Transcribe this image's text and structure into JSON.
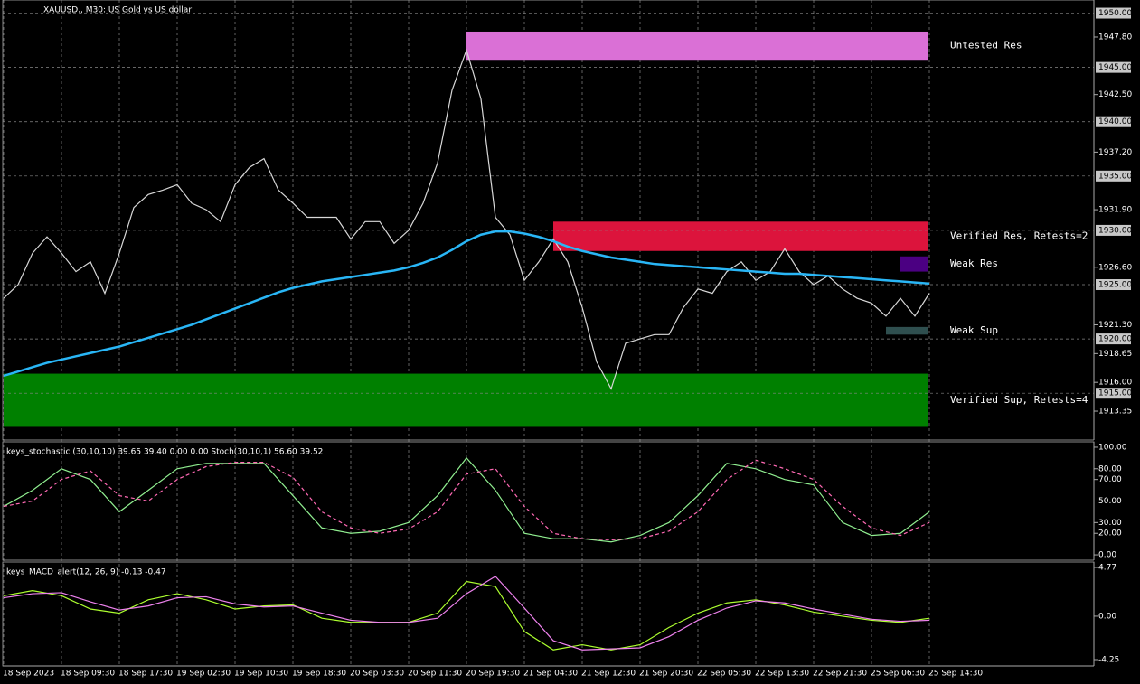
{
  "chart_data": [
    {
      "type": "line",
      "title": "XAUUSD., M30: US Gold vs US dollar",
      "categories": [
        "18 Sep 2023",
        null,
        null,
        null,
        "18 Sep 09:30",
        null,
        null,
        null,
        "18 Sep 17:30",
        null,
        null,
        null,
        "19 Sep 02:30",
        null,
        null,
        null,
        "19 Sep 10:30",
        null,
        null,
        null,
        "19 Sep 18:30",
        null,
        null,
        null,
        "20 Sep 03:30",
        null,
        null,
        null,
        "20 Sep 11:30",
        null,
        null,
        null,
        "20 Sep 19:30",
        null,
        null,
        null,
        "21 Sep 04:30",
        null,
        null,
        null,
        "21 Sep 12:30",
        null,
        null,
        null,
        "21 Sep 20:30",
        null,
        null,
        null,
        "22 Sep 05:30",
        null,
        null,
        null,
        "22 Sep 13:30",
        null,
        null,
        null,
        "22 Sep 21:30",
        null,
        null,
        null,
        "25 Sep 06:30",
        null,
        null,
        null,
        "25 Sep 14:30"
      ],
      "series": [
        {
          "color": "#d8d8d8",
          "values": [
            1923.75,
            1925.0,
            1927.9,
            1929.4,
            1927.9,
            1926.2,
            1927.1,
            1924.2,
            1927.9,
            1932.1,
            1933.3,
            1933.7,
            1934.2,
            1932.5,
            1931.9,
            1930.8,
            1934.2,
            1935.8,
            1936.6,
            1933.7,
            1932.5,
            1931.2,
            1931.2,
            1931.2,
            1929.2,
            1930.8,
            1930.8,
            1928.8,
            1930.0,
            1932.5,
            1936.2,
            1942.9,
            1946.6,
            1942.1,
            1931.2,
            1929.6,
            1925.4,
            1927.1,
            1929.2,
            1927.1,
            1922.9,
            1917.9,
            1915.4,
            1919.6,
            1920.0,
            1920.4,
            1920.4,
            1922.9,
            1924.6,
            1924.2,
            1926.2,
            1927.1,
            1925.4,
            1926.2,
            1928.3,
            1926.2,
            1925.0,
            1925.8,
            1924.6,
            1923.75,
            1923.3,
            1922.1,
            1923.75,
            1922.1,
            1924.2
          ]
        },
        {
          "color": "#29b6f6",
          "values": [
            1916.6,
            1917.0,
            1917.4,
            1917.8,
            1918.1,
            1918.4,
            1918.7,
            1919.0,
            1919.3,
            1919.7,
            1920.1,
            1920.5,
            1920.9,
            1921.3,
            1921.8,
            1922.3,
            1922.8,
            1923.3,
            1923.8,
            1924.3,
            1924.7,
            1925.0,
            1925.3,
            1925.5,
            1925.7,
            1925.9,
            1926.1,
            1926.3,
            1926.6,
            1927.0,
            1927.5,
            1928.2,
            1929.0,
            1929.6,
            1929.9,
            1929.9,
            1929.7,
            1929.4,
            1929.0,
            1928.5,
            1928.1,
            1927.8,
            1927.5,
            1927.3,
            1927.1,
            1926.9,
            1926.8,
            1926.7,
            1926.6,
            1926.5,
            1926.4,
            1926.3,
            1926.2,
            1926.1,
            1926.0,
            1926.0,
            1925.9,
            1925.8,
            1925.7,
            1925.6,
            1925.5,
            1925.4,
            1925.3,
            1925.2,
            1925.1
          ]
        }
      ],
      "ylim": [
        1910.69,
        1951.21
      ],
      "yticks": [
        1913.35,
        {
          "value": 1916.0,
          "label": "1916.00"
        },
        1918.65,
        {
          "value": 1921.3,
          "label": "1921.30"
        },
        {
          "value": 1926.6,
          "label": "1926.60"
        },
        {
          "value": 1931.9,
          "label": "1931.90"
        },
        {
          "value": 1937.2,
          "label": "1937.20"
        },
        {
          "value": 1942.5,
          "label": "1942.50"
        },
        {
          "value": 1947.8,
          "label": "1947.80"
        }
      ],
      "levels": [
        {
          "value": 1915,
          "label": "1915.00"
        },
        {
          "value": 1920,
          "label": "1920.00"
        },
        {
          "value": 1925,
          "label": "1925.00"
        },
        {
          "value": 1930,
          "label": "1930.00"
        },
        {
          "value": 1935,
          "label": "1935.00"
        },
        {
          "value": 1940,
          "label": "1940.00"
        },
        {
          "value": 1945,
          "label": "1945.00"
        },
        {
          "value": 1950,
          "label": "1950.00"
        }
      ],
      "zones": [
        {
          "label": "Untested Res",
          "color": "#da70d6",
          "start": 32,
          "high": 1948.3,
          "low": 1945.7
        },
        {
          "label": "Verified Res, Retests=2",
          "color": "#dc143c",
          "start": 38,
          "high": 1930.8,
          "low": 1928.1
        },
        {
          "label": "Weak Res",
          "color": "#4b0082",
          "start": 62,
          "high": 1927.6,
          "low": 1926.2
        },
        {
          "label": "Weak Sup",
          "color": "#2f4f4f",
          "start": 61,
          "high": 1921.1,
          "low": 1920.4
        },
        {
          "label": "Verified Sup, Retests=4",
          "color": "#008000",
          "start": 0,
          "high": 1916.8,
          "low": 1911.9
        }
      ]
    },
    {
      "type": "line",
      "title": "keys_stochastic (30,10,10) 39.65 39.40 0.00 0.00 Stoch(30,10,1) 56.60 39.52",
      "series": [
        {
          "color": "#90ee90",
          "values": [
            45,
            60,
            80,
            70,
            40,
            60,
            80,
            85,
            85,
            85,
            55,
            25,
            20,
            22,
            30,
            55,
            90,
            60,
            20,
            15,
            15,
            12,
            18,
            30,
            55,
            85,
            80,
            70,
            65,
            30,
            18,
            20,
            40
          ]
        },
        {
          "color": "#ff69b4",
          "dashed": true,
          "values": [
            45,
            50,
            70,
            78,
            55,
            50,
            70,
            82,
            86,
            86,
            72,
            40,
            25,
            20,
            24,
            40,
            75,
            80,
            45,
            20,
            15,
            14,
            15,
            22,
            40,
            70,
            88,
            80,
            70,
            45,
            25,
            18,
            30
          ]
        }
      ],
      "ylim": [
        -5,
        105
      ],
      "yticks": [
        {
          "value": 0,
          "label": "0.00"
        },
        {
          "value": 20,
          "label": "20.00"
        },
        {
          "value": 30,
          "label": "30.00"
        },
        {
          "value": 50,
          "label": "50.00"
        },
        {
          "value": 70,
          "label": "70.00"
        },
        {
          "value": 80,
          "label": "80.00"
        },
        {
          "value": 100,
          "label": "100.00"
        }
      ]
    },
    {
      "type": "line",
      "title": "keys_MACD_alert(12, 26, 9) -0.13 -0.47",
      "series": [
        {
          "color": "#adff2f",
          "values": [
            2.0,
            2.5,
            2.0,
            0.7,
            0.3,
            1.6,
            2.2,
            1.6,
            0.7,
            1.0,
            1.1,
            -0.2,
            -0.6,
            -0.6,
            -0.6,
            0.3,
            3.4,
            2.9,
            -1.5,
            -3.3,
            -2.8,
            -3.3,
            -2.8,
            -1.1,
            0.3,
            1.3,
            1.6,
            1.1,
            0.4,
            0.0,
            -0.4,
            -0.6,
            -0.2
          ]
        },
        {
          "color": "#ee82ee",
          "values": [
            1.8,
            2.2,
            2.3,
            1.4,
            0.6,
            1.0,
            1.8,
            1.9,
            1.2,
            0.9,
            1.0,
            0.3,
            -0.4,
            -0.6,
            -0.6,
            -0.2,
            2.2,
            3.9,
            0.8,
            -2.4,
            -3.3,
            -3.2,
            -3.1,
            -2.0,
            -0.4,
            0.8,
            1.5,
            1.3,
            0.7,
            0.2,
            -0.3,
            -0.5,
            -0.4
          ]
        }
      ],
      "ylim": [
        -4.87,
        5.3
      ],
      "yticks": [
        -4.25,
        {
          "value": 0,
          "label": "0.00"
        },
        4.77
      ]
    }
  ]
}
